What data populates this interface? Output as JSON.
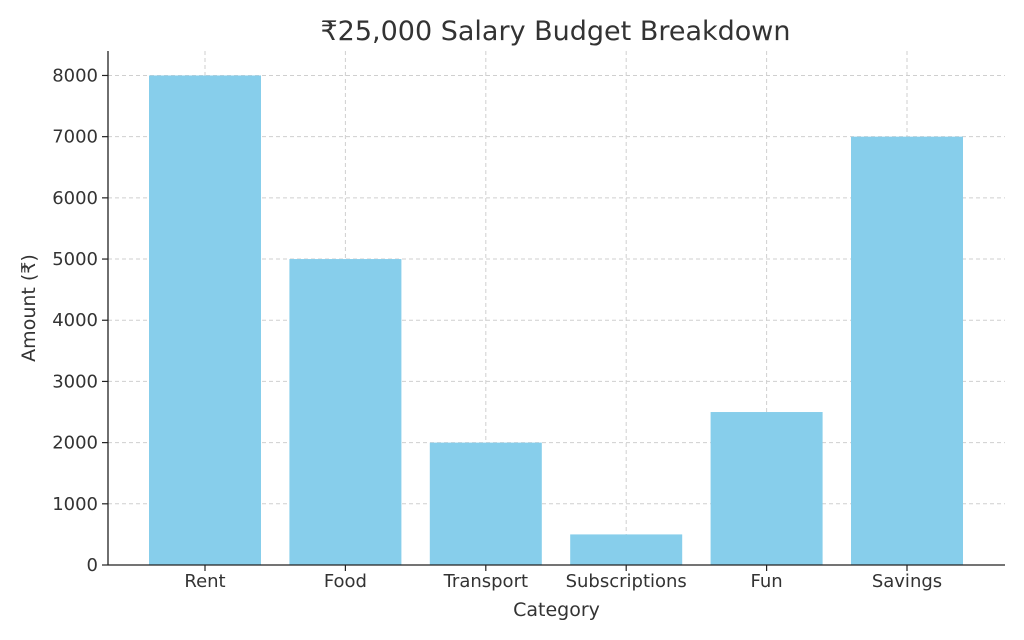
{
  "chart_data": {
    "type": "bar",
    "title": "₹25,000 Salary Budget Breakdown",
    "xlabel": "Category",
    "ylabel": "Amount (₹)",
    "categories": [
      "Rent",
      "Food",
      "Transport",
      "Subscriptions",
      "Fun",
      "Savings"
    ],
    "values": [
      8000,
      5000,
      2000,
      500,
      2500,
      7000
    ],
    "ylim": [
      0,
      8400
    ],
    "yticks": [
      0,
      1000,
      2000,
      3000,
      4000,
      5000,
      6000,
      7000,
      8000
    ],
    "grid": true,
    "bar_color": "#87ceeb"
  }
}
